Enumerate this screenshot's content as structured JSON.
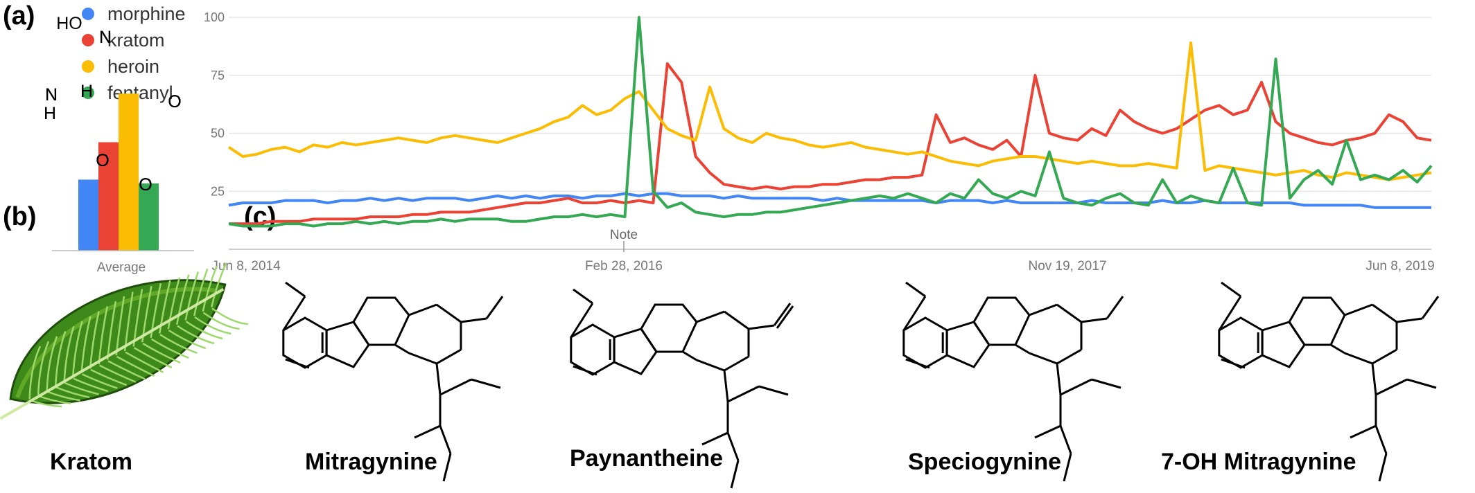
{
  "panels": {
    "a": "(a)",
    "b": "(b)",
    "c": "(c)"
  },
  "chart_data": {
    "type": "line",
    "x_tick_labels": [
      "Jun 8, 2014",
      "Feb 28, 2016",
      "Nov 19, 2017",
      "Jun 8, 2019"
    ],
    "y_ticks": [
      25,
      50,
      75,
      100
    ],
    "ylim": [
      0,
      100
    ],
    "note_label": "Note",
    "grid": true,
    "legend_position": "top-left",
    "series": [
      {
        "name": "morphine",
        "color": "#4285F4",
        "values": [
          19,
          20,
          20,
          20,
          21,
          21,
          21,
          20,
          21,
          21,
          22,
          21,
          22,
          21,
          22,
          22,
          22,
          21,
          22,
          23,
          22,
          23,
          22,
          23,
          23,
          22,
          23,
          23,
          24,
          23,
          24,
          24,
          23,
          23,
          23,
          22,
          23,
          22,
          22,
          22,
          22,
          22,
          21,
          22,
          21,
          21,
          21,
          21,
          21,
          21,
          20,
          21,
          21,
          21,
          20,
          21,
          20,
          20,
          20,
          20,
          20,
          21,
          20,
          20,
          20,
          20,
          21,
          20,
          20,
          21,
          20,
          20,
          20,
          20,
          20,
          20,
          19,
          19,
          19,
          19,
          19,
          18,
          18,
          18,
          18,
          18
        ]
      },
      {
        "name": "kratom",
        "color": "#EA4335",
        "values": [
          11,
          11,
          11,
          12,
          12,
          12,
          13,
          13,
          13,
          13,
          14,
          14,
          14,
          15,
          15,
          16,
          16,
          16,
          17,
          18,
          19,
          20,
          20,
          21,
          22,
          20,
          20,
          21,
          20,
          21,
          20,
          80,
          72,
          40,
          33,
          28,
          27,
          26,
          27,
          26,
          27,
          27,
          28,
          28,
          29,
          30,
          30,
          31,
          31,
          32,
          58,
          46,
          48,
          45,
          43,
          47,
          40,
          75,
          50,
          48,
          47,
          52,
          49,
          60,
          55,
          52,
          50,
          52,
          56,
          60,
          62,
          58,
          60,
          72,
          55,
          50,
          48,
          46,
          45,
          47,
          48,
          50,
          58,
          55,
          48,
          47
        ]
      },
      {
        "name": "heroin",
        "color": "#FBBC04",
        "values": [
          44,
          40,
          41,
          43,
          44,
          42,
          45,
          44,
          46,
          45,
          46,
          47,
          48,
          47,
          46,
          48,
          49,
          48,
          47,
          46,
          48,
          50,
          52,
          55,
          57,
          62,
          58,
          60,
          65,
          68,
          60,
          52,
          49,
          47,
          70,
          52,
          48,
          46,
          50,
          48,
          47,
          45,
          44,
          45,
          46,
          44,
          43,
          42,
          41,
          42,
          40,
          38,
          37,
          36,
          38,
          39,
          40,
          40,
          39,
          38,
          37,
          38,
          37,
          36,
          36,
          37,
          36,
          35,
          89,
          34,
          36,
          35,
          34,
          33,
          32,
          33,
          34,
          32,
          31,
          33,
          32,
          31,
          30,
          31,
          32,
          33
        ]
      },
      {
        "name": "fentanyl",
        "color": "#34A853",
        "values": [
          11,
          10,
          10,
          10,
          11,
          11,
          10,
          11,
          11,
          12,
          11,
          12,
          11,
          12,
          12,
          13,
          12,
          13,
          13,
          13,
          12,
          12,
          13,
          14,
          14,
          15,
          14,
          15,
          14,
          100,
          25,
          18,
          20,
          16,
          15,
          14,
          15,
          15,
          16,
          16,
          17,
          18,
          19,
          20,
          21,
          22,
          23,
          22,
          24,
          22,
          20,
          24,
          22,
          30,
          24,
          22,
          25,
          23,
          42,
          22,
          20,
          19,
          22,
          24,
          20,
          19,
          30,
          20,
          23,
          21,
          20,
          35,
          20,
          19,
          82,
          22,
          30,
          34,
          28,
          47,
          30,
          32,
          30,
          34,
          29,
          36
        ]
      }
    ],
    "average_bar": {
      "label": "Average",
      "values": [
        19,
        29,
        42,
        18
      ]
    }
  },
  "leaf_caption": "Kratom",
  "compounds": [
    "Mitragynine",
    "Paynantheine",
    "Speciogynine",
    "7-OH Mitragynine"
  ],
  "atom_labels": {
    "N": "N",
    "NH": "N",
    "H": "H",
    "O": "O",
    "HO": "HO"
  },
  "colors": {
    "grid": "#e6e6e6",
    "axis_text": "#777777",
    "leaf_dark": "#2e6b12",
    "leaf_light": "#6fb52c"
  }
}
